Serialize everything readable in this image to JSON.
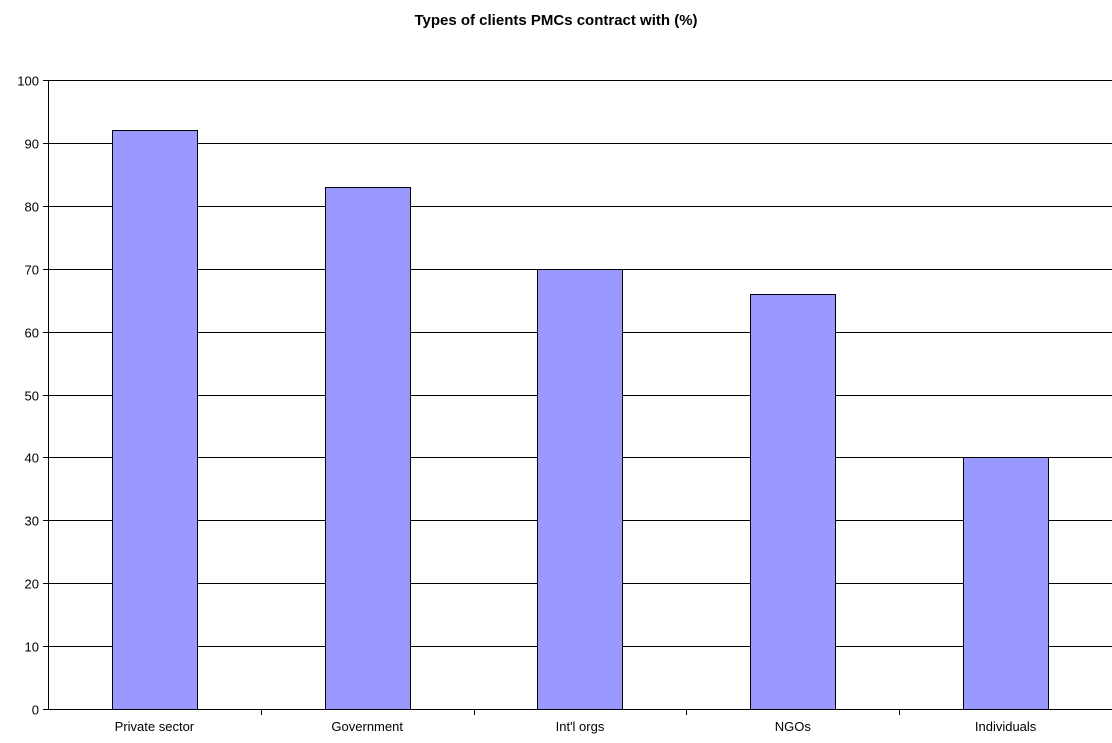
{
  "chart_data": {
    "type": "bar",
    "title": "Types of clients PMCs contract with (%)",
    "xlabel": "",
    "ylabel": "",
    "categories": [
      "Private sector",
      "Government",
      "Int'l orgs",
      "NGOs",
      "Individuals"
    ],
    "values": [
      92,
      83,
      70,
      66,
      40
    ],
    "ylim": [
      0,
      100
    ],
    "yticks": [
      "0",
      "10",
      "20",
      "30",
      "40",
      "50",
      "60",
      "70",
      "80",
      "90",
      "100"
    ],
    "grid": true,
    "legend": "none",
    "colors": {
      "bar_fill": "#9999ff",
      "bar_stroke": "#000000",
      "grid": "#000000",
      "axis": "#000000"
    }
  }
}
